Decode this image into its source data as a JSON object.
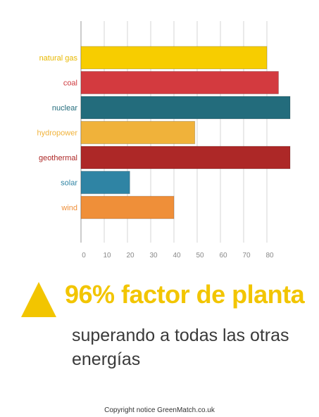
{
  "chart_data": {
    "type": "bar",
    "orientation": "horizontal",
    "categories": [
      "natural gas",
      "coal",
      "nuclear",
      "hydropower",
      "geothermal",
      "solar",
      "wind"
    ],
    "values": [
      80,
      85,
      90,
      49,
      90,
      21,
      40
    ],
    "colors": [
      "#f7cd00",
      "#d33a3f",
      "#236c7c",
      "#f0b23a",
      "#ad2827",
      "#2f84a4",
      "#ef8f39"
    ],
    "label_colors": [
      "#e8b800",
      "#cf3a3f",
      "#236c7c",
      "#f0b23a",
      "#ad2827",
      "#2f84a4",
      "#ef8f39"
    ],
    "xticks": [
      0,
      10,
      20,
      30,
      40,
      50,
      60,
      70,
      80
    ],
    "xlim": [
      0,
      90
    ],
    "grid": true
  },
  "callout": {
    "headline": "96% factor de planta",
    "subline": "superando a todas las otras energías",
    "accent_color": "#f2c500"
  },
  "footer": {
    "copyright": "Copyright notice GreenMatch.co.uk"
  }
}
